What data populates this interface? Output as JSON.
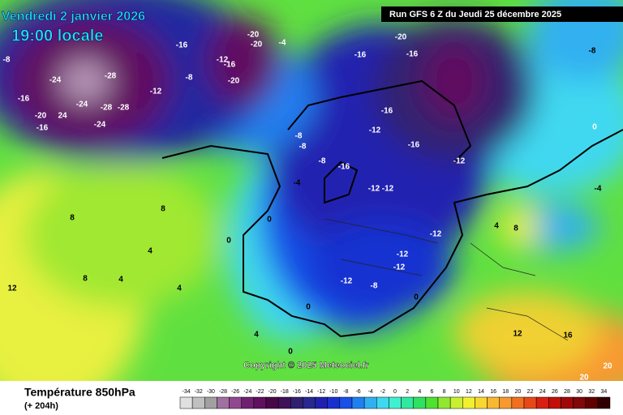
{
  "header": {
    "date": "Vendredi 2 janvier 2026",
    "time": "19:00 locale",
    "run": "Run GFS 6 Z du Jeudi 25 décembre 2025"
  },
  "copyright": "Copyright © 2025 Meteociel.fr",
  "footer": {
    "title": "Température 850hPa",
    "lead": "(+ 204h)"
  },
  "scale": {
    "values": [
      -34,
      -32,
      -30,
      -28,
      -26,
      -24,
      -22,
      -20,
      -18,
      -16,
      -14,
      -12,
      -10,
      -8,
      -6,
      -4,
      -2,
      0,
      2,
      4,
      6,
      8,
      10,
      12,
      14,
      16,
      18,
      20,
      22,
      24,
      26,
      28,
      30,
      32,
      34
    ],
    "colors": [
      "#e0e0e0",
      "#c0c0c0",
      "#a0a0a0",
      "#a070a0",
      "#904890",
      "#702070",
      "#601060",
      "#480848",
      "#401058",
      "#302070",
      "#282890",
      "#2020b0",
      "#1830d0",
      "#1850e8",
      "#2080f0",
      "#30b0f0",
      "#40d8f0",
      "#40f0d0",
      "#30e8a0",
      "#30e060",
      "#50e030",
      "#90e830",
      "#c8f030",
      "#f0f030",
      "#f8d830",
      "#f8b830",
      "#f89830",
      "#f07020",
      "#e84818",
      "#d82010",
      "#c01008",
      "#a00808",
      "#800808",
      "#600000",
      "#300000"
    ]
  },
  "map": {
    "labels": [
      "-24",
      "-28",
      "-24",
      "-28",
      "-28",
      "24",
      "-20",
      "-16",
      "-16",
      "-24",
      "-20",
      "-20",
      "-16",
      "-20",
      "-12",
      "-16",
      "-12",
      "-8",
      "-8",
      "-4",
      "-16",
      "-20",
      "-16",
      "-16",
      "-12",
      "-16",
      "-12",
      "-8",
      "-16",
      "-12",
      "-12",
      "-12",
      "-12",
      "-12",
      "-12",
      "-8",
      "-8",
      "-8",
      "-4",
      "0",
      "0",
      "0",
      "0",
      "8",
      "8",
      "8",
      "4",
      "4",
      "4",
      "12",
      "12",
      "16",
      "20",
      "20",
      "8",
      "4",
      "0",
      "-8",
      "-4",
      "4",
      "0"
    ]
  }
}
